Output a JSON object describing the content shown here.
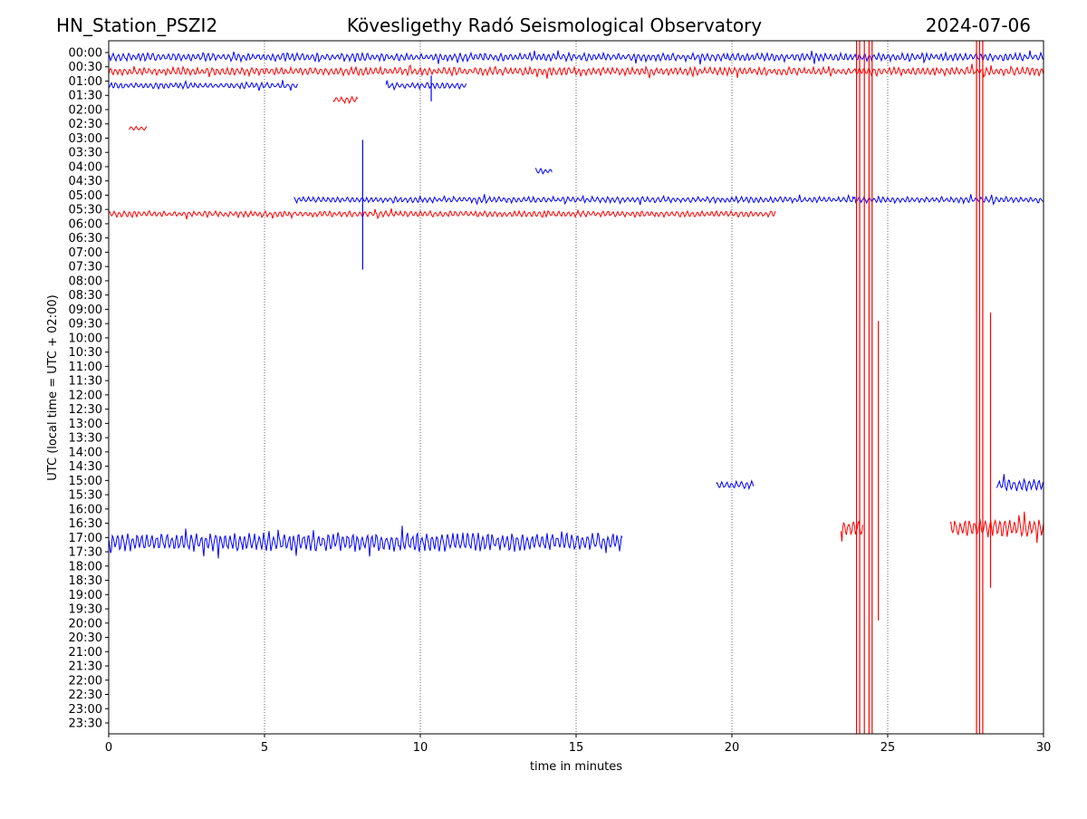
{
  "header": {
    "station": "HN_Station_PSZI2",
    "title": "Kövesligethy Radó Seismological Observatory",
    "date": "2024-07-06"
  },
  "chart_data": {
    "type": "line",
    "title": "Kövesligethy Radó Seismological Observatory",
    "xlabel": "time in minutes",
    "ylabel": "UTC (local time = UTC + 02:00)",
    "xlim": [
      0,
      30
    ],
    "xticks": [
      "0",
      "5",
      "10",
      "15",
      "20",
      "25",
      "30"
    ],
    "xtick_values": [
      0,
      5,
      10,
      15,
      20,
      25,
      30
    ],
    "yticks": [
      "00:00",
      "00:30",
      "01:00",
      "01:30",
      "02:00",
      "02:30",
      "03:00",
      "03:30",
      "04:00",
      "04:30",
      "05:00",
      "05:30",
      "06:00",
      "06:30",
      "07:00",
      "07:30",
      "08:00",
      "08:30",
      "09:00",
      "09:30",
      "10:00",
      "10:30",
      "11:00",
      "11:30",
      "12:00",
      "12:30",
      "13:00",
      "13:30",
      "14:00",
      "14:30",
      "15:00",
      "15:30",
      "16:00",
      "16:30",
      "17:00",
      "17:30",
      "18:00",
      "18:30",
      "19:00",
      "19:30",
      "20:00",
      "20:30",
      "21:00",
      "21:30",
      "22:00",
      "22:30",
      "23:00",
      "23:30"
    ],
    "grid": "vertical dotted",
    "row_colors": [
      "#0000ff",
      "#ff0000"
    ],
    "segments": [
      {
        "row": 0,
        "start": 0,
        "end": 30,
        "amp": 4
      },
      {
        "row": 1,
        "start": 0,
        "end": 30,
        "amp": 4
      },
      {
        "row": 2,
        "start": 0,
        "end": 6.1,
        "amp": 3
      },
      {
        "row": 2,
        "start": 8.9,
        "end": 11.5,
        "amp": 3
      },
      {
        "row": 3,
        "start": 7.2,
        "end": 8.0,
        "amp": 3
      },
      {
        "row": 5,
        "start": 0.65,
        "end": 1.25,
        "amp": 2
      },
      {
        "row": 8,
        "start": 13.7,
        "end": 14.25,
        "amp": 3
      },
      {
        "row": 10,
        "start": 5.95,
        "end": 30,
        "amp": 3
      },
      {
        "row": 11,
        "start": 0,
        "end": 21.4,
        "amp": 3
      },
      {
        "row": 30,
        "start": 19.5,
        "end": 20.7,
        "amp": 4
      },
      {
        "row": 30,
        "start": 28.5,
        "end": 30,
        "amp": 6
      },
      {
        "row": 33,
        "start": 23.5,
        "end": 24.2,
        "amp": 8
      },
      {
        "row": 33,
        "start": 27.0,
        "end": 30,
        "amp": 9
      },
      {
        "row": 34,
        "start": 0,
        "end": 16.5,
        "amp": 9
      }
    ],
    "spikes": [
      {
        "minute": 8.15,
        "color": "#0000ff",
        "row_from": 5.8,
        "row_to": 14.9
      },
      {
        "minute": 10.35,
        "color": "#0000ff",
        "row_from": 1.3,
        "row_to": 3.1
      },
      {
        "minute": 24.0,
        "color": "#ff0000",
        "row_from": -2,
        "row_to": 48
      },
      {
        "minute": 24.1,
        "color": "#ff0000",
        "row_from": -2,
        "row_to": 48
      },
      {
        "minute": 24.25,
        "color": "#ff0000",
        "row_from": -2,
        "row_to": 48
      },
      {
        "minute": 24.4,
        "color": "#ff0000",
        "row_from": -2,
        "row_to": 48
      },
      {
        "minute": 24.5,
        "color": "#ff0000",
        "row_from": -2,
        "row_to": 48
      },
      {
        "minute": 24.7,
        "color": "#ff0000",
        "row_from": 18.5,
        "row_to": 39.5
      },
      {
        "minute": 27.85,
        "color": "#ff0000",
        "row_from": -2,
        "row_to": 48
      },
      {
        "minute": 27.95,
        "color": "#ff0000",
        "row_from": -2,
        "row_to": 48
      },
      {
        "minute": 28.05,
        "color": "#ff0000",
        "row_from": -2,
        "row_to": 48
      },
      {
        "minute": 28.3,
        "color": "#ff0000",
        "row_from": 17.9,
        "row_to": 37.2
      }
    ]
  }
}
